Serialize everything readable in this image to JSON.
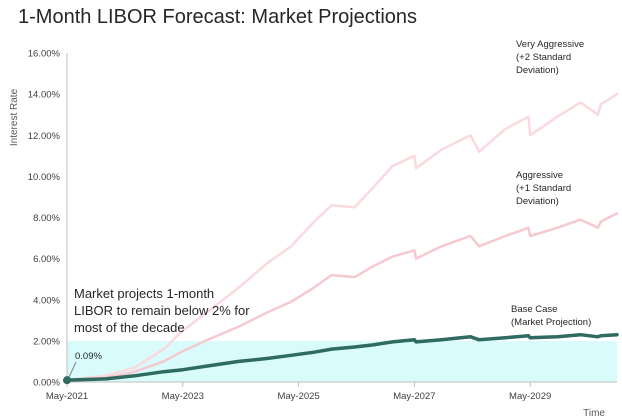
{
  "colors": {
    "base": "#2f6b60",
    "aggressive": "#f7c9cf",
    "very_aggressive": "#fbd9dd",
    "band": "#d9fbfb",
    "axis": "#bfbfbf"
  },
  "chart_data": {
    "type": "line",
    "title": "1-Month LIBOR Forecast: Market Projections",
    "xlabel": "Time",
    "ylabel": "Interest Rate",
    "ylim": [
      0,
      16
    ],
    "xlim": [
      2021.33,
      2030.83
    ],
    "grid": false,
    "y_ticks": [
      "0.00%",
      "2.00%",
      "4.00%",
      "6.00%",
      "8.00%",
      "10.00%",
      "12.00%",
      "14.00%",
      "16.00%"
    ],
    "x_ticks": [
      {
        "label": "May-2021",
        "x": 2021.33
      },
      {
        "label": "May-2023",
        "x": 2023.33
      },
      {
        "label": "May-2025",
        "x": 2025.33
      },
      {
        "label": "May-2027",
        "x": 2027.33
      },
      {
        "label": "May-2029",
        "x": 2029.33
      }
    ],
    "series": [
      {
        "name": "Very Aggressive (+2 Standard Deviation)",
        "label_lines": [
          "Very Aggressive",
          "(+2 Standard",
          "Deviation)"
        ],
        "color_key": "very_aggressive",
        "x": [
          2021.33,
          2022.0,
          2022.5,
          2023.0,
          2023.33,
          2023.8,
          2024.3,
          2024.8,
          2025.2,
          2025.6,
          2025.9,
          2026.3,
          2026.6,
          2026.95,
          2027.33,
          2027.36,
          2027.8,
          2028.3,
          2028.45,
          2028.9,
          2029.3,
          2029.33,
          2029.8,
          2030.2,
          2030.5,
          2030.55,
          2030.83
        ],
        "values": [
          0.1,
          0.3,
          0.7,
          1.6,
          2.5,
          3.5,
          4.6,
          5.8,
          6.6,
          7.8,
          8.6,
          8.5,
          9.4,
          10.5,
          11.0,
          10.4,
          11.3,
          12.0,
          11.2,
          12.3,
          12.9,
          12.0,
          12.9,
          13.6,
          13.0,
          13.5,
          14.0
        ]
      },
      {
        "name": "Aggressive (+1 Standard Deviation)",
        "label_lines": [
          "Aggressive",
          "(+1 Standard",
          "Deviation)"
        ],
        "color_key": "aggressive",
        "x": [
          2021.33,
          2022.0,
          2022.5,
          2023.0,
          2023.33,
          2023.8,
          2024.3,
          2024.8,
          2025.2,
          2025.6,
          2025.9,
          2026.3,
          2026.6,
          2026.95,
          2027.33,
          2027.36,
          2027.8,
          2028.3,
          2028.45,
          2028.9,
          2029.3,
          2029.33,
          2029.8,
          2030.2,
          2030.5,
          2030.55,
          2030.83
        ],
        "values": [
          0.05,
          0.2,
          0.5,
          1.0,
          1.5,
          2.1,
          2.7,
          3.4,
          3.9,
          4.6,
          5.2,
          5.1,
          5.6,
          6.1,
          6.4,
          6.0,
          6.6,
          7.1,
          6.6,
          7.1,
          7.5,
          7.1,
          7.5,
          7.9,
          7.5,
          7.8,
          8.2
        ]
      },
      {
        "name": "Base Case (Market Projection)",
        "label_lines": [
          "Base Case",
          "(Market Projection)"
        ],
        "color_key": "base",
        "x": [
          2021.33,
          2022.0,
          2022.5,
          2023.0,
          2023.33,
          2023.8,
          2024.3,
          2024.8,
          2025.2,
          2025.6,
          2025.9,
          2026.3,
          2026.6,
          2026.95,
          2027.33,
          2027.36,
          2027.8,
          2028.3,
          2028.45,
          2028.9,
          2029.3,
          2029.33,
          2029.8,
          2030.2,
          2030.5,
          2030.55,
          2030.83
        ],
        "values": [
          0.09,
          0.15,
          0.3,
          0.5,
          0.6,
          0.8,
          1.0,
          1.15,
          1.3,
          1.45,
          1.6,
          1.7,
          1.8,
          1.95,
          2.05,
          1.95,
          2.05,
          2.2,
          2.05,
          2.15,
          2.25,
          2.15,
          2.2,
          2.3,
          2.2,
          2.25,
          2.3
        ]
      }
    ],
    "band": {
      "from": 0,
      "to": 2
    },
    "annotation": "Market projects 1-month LIBOR to remain below 2% for most of the decade",
    "annotation_lines": [
      "Market projects 1-month",
      "LIBOR to remain below 2% for",
      "most of the decade"
    ],
    "start_marker": {
      "x": 2021.33,
      "y": 0.09,
      "label": "0.09%"
    }
  }
}
